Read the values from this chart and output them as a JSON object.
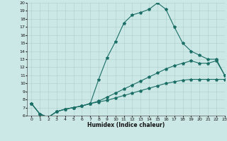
{
  "bg_color": "#cce8e6",
  "line_color": "#1a6e66",
  "grid_color": "#aacfcc",
  "xlabel": "Humidex (Indice chaleur)",
  "ylim": [
    6,
    20
  ],
  "xlim": [
    -0.5,
    23
  ],
  "yticks": [
    6,
    7,
    8,
    9,
    10,
    11,
    12,
    13,
    14,
    15,
    16,
    17,
    18,
    19,
    20
  ],
  "xticks": [
    0,
    1,
    2,
    3,
    4,
    5,
    6,
    7,
    8,
    9,
    10,
    11,
    12,
    13,
    14,
    15,
    16,
    17,
    18,
    19,
    20,
    21,
    22,
    23
  ],
  "line1_x": [
    0,
    1,
    2,
    3,
    4,
    5,
    6,
    7,
    8,
    9,
    10,
    11,
    12,
    13,
    14,
    15,
    16,
    17,
    18,
    19,
    20,
    21,
    22,
    23
  ],
  "line1_y": [
    7.5,
    6.2,
    5.8,
    6.5,
    6.8,
    7.0,
    7.2,
    7.5,
    10.5,
    13.2,
    15.2,
    17.5,
    18.5,
    18.8,
    19.2,
    20.0,
    19.2,
    17.0,
    15.0,
    14.0,
    13.5,
    13.0,
    13.0,
    11.0
  ],
  "line2_x": [
    0,
    1,
    2,
    3,
    4,
    5,
    6,
    7,
    8,
    9,
    10,
    11,
    12,
    13,
    14,
    15,
    16,
    17,
    18,
    19,
    20,
    21,
    22,
    23
  ],
  "line2_y": [
    7.5,
    6.2,
    5.8,
    6.5,
    6.8,
    7.0,
    7.2,
    7.5,
    7.8,
    8.3,
    8.8,
    9.3,
    9.8,
    10.3,
    10.8,
    11.3,
    11.8,
    12.2,
    12.5,
    12.8,
    12.5,
    12.5,
    12.8,
    11.0
  ],
  "line3_x": [
    0,
    1,
    2,
    3,
    4,
    5,
    6,
    7,
    8,
    9,
    10,
    11,
    12,
    13,
    14,
    15,
    16,
    17,
    18,
    19,
    20,
    21,
    22,
    23
  ],
  "line3_y": [
    7.5,
    6.2,
    5.8,
    6.5,
    6.8,
    7.0,
    7.2,
    7.5,
    7.7,
    7.9,
    8.2,
    8.5,
    8.8,
    9.1,
    9.4,
    9.7,
    10.0,
    10.2,
    10.4,
    10.5,
    10.5,
    10.5,
    10.5,
    10.5
  ],
  "marker": "*",
  "markersize": 3,
  "linewidth": 0.8,
  "tick_fontsize": 4.5,
  "xlabel_fontsize": 5.5
}
